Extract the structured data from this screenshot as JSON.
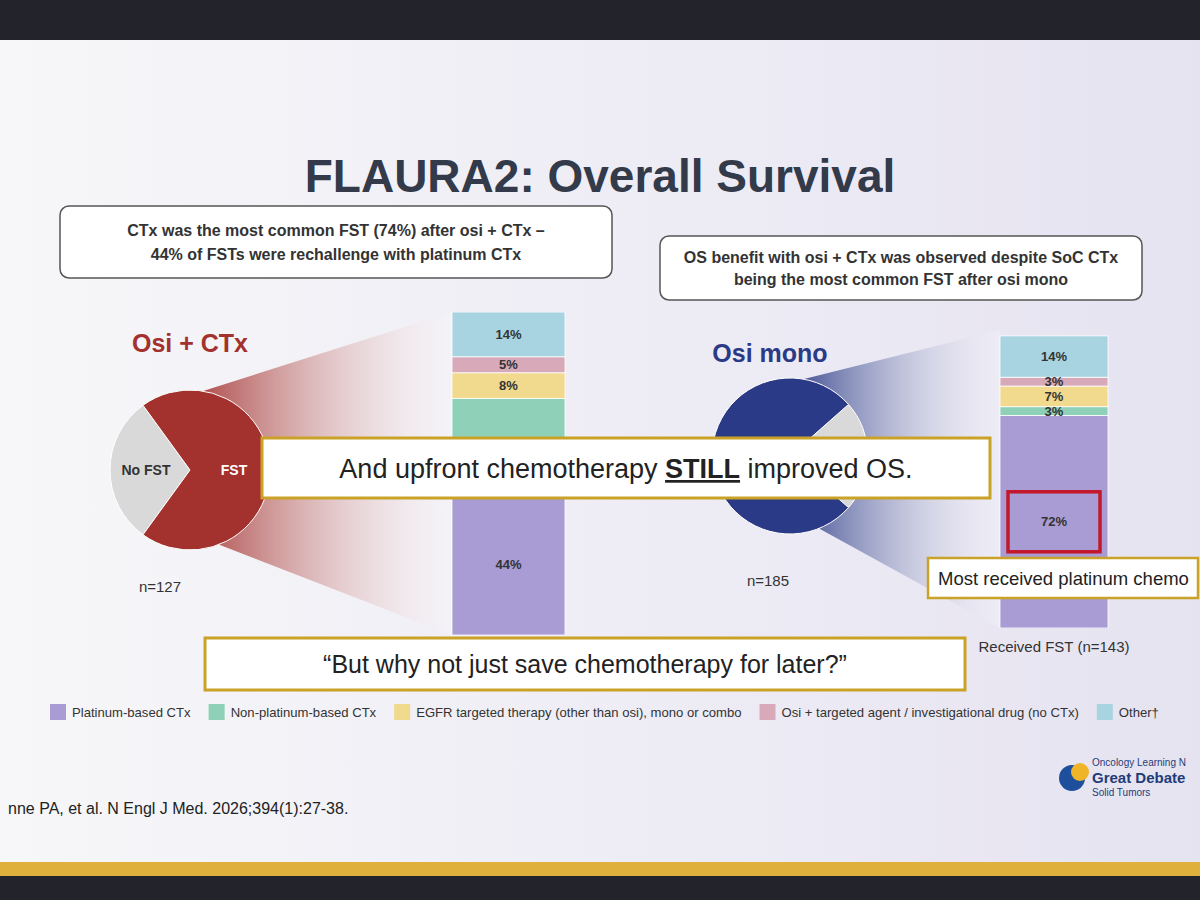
{
  "slide": {
    "title": "FLAURA2: Overall Survival",
    "callouts": [
      [
        "CTx was the most common FST (74%) after osi + CTx –",
        "44% of FSTs were rechallenge with platinum CTx"
      ],
      [
        "OS benefit with osi + CTx was observed despite SoC CTx",
        "being the most common FST after osi mono"
      ]
    ],
    "overlays": {
      "statement": {
        "before": "And upfront chemotherapy ",
        "emphasis": "STILL",
        "after": " improved OS."
      },
      "question": "“But why not just save chemotherapy for later?”"
    },
    "citation": "nne PA, et al. N Engl J Med. 2026;394(1):27-38.",
    "logo": [
      "Oncology Learning N",
      "Great Debate",
      "Solid Tumors"
    ]
  },
  "chart_data": [
    {
      "type": "pie",
      "title": "Osi + CTx",
      "subtitle": "n=127",
      "categories": [
        "No FST",
        "FST"
      ],
      "values": [
        30,
        70
      ],
      "colors": [
        "#d9d9d9",
        "#a3312e"
      ]
    },
    {
      "type": "bar",
      "stacked": true,
      "data_labels": true,
      "tick_labels": "x",
      "legend": "bottom",
      "categories": [
        null,
        "Received FST (n=143)"
      ],
      "ylim": [
        0,
        101
      ],
      "annotations": [
        "Most received platinum chemo"
      ],
      "series": [
        {
          "name": "Platinum-based CTx",
          "color": "#a99bd3",
          "values": [
            44,
            72
          ],
          "value_labels": [
            "44%",
            "72%"
          ]
        },
        {
          "name": "Non-platinum-based CTx",
          "color": "#8fd0b8",
          "values": [
            30,
            3
          ],
          "value_labels": [
            null,
            "3%"
          ]
        },
        {
          "name": "EGFR targeted therapy (other than osi), mono or combo",
          "color": "#f1d98e",
          "values": [
            8,
            7
          ],
          "value_labels": [
            "8%",
            "7%"
          ]
        },
        {
          "name": "Osi + targeted agent / investigational drug (no CTx)",
          "color": "#d8aab9",
          "values": [
            5,
            3
          ],
          "value_labels": [
            "5%",
            "3%"
          ]
        },
        {
          "name": "Other†",
          "color": "#a8d3e1",
          "values": [
            14,
            14
          ],
          "value_labels": [
            "14%",
            "14%"
          ]
        }
      ]
    },
    {
      "type": "pie",
      "title": "Osi mono",
      "subtitle": "n=185",
      "categories": [
        null,
        null
      ],
      "values": [
        23,
        77
      ],
      "colors": [
        "#d9d9d9",
        "#2b3a86"
      ]
    }
  ]
}
